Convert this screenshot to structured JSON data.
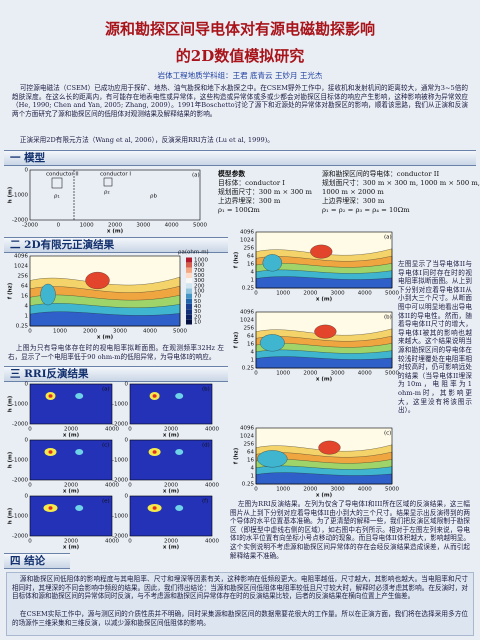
{
  "header": {
    "title_line1": "源和勘探区间导电体对有源电磁勘探影响",
    "title_line2": "的2D数值模拟研究",
    "authors": "岩体工程地质学科组：王君 底青云 王妙月 王光杰"
  },
  "intro": [
    "可控源电磁法（CSEM）已成功应用于探矿、地热、油气勘探和地下水勘探之中。在CSEM野外工作中，接收机和发射机间的距离较大，通常为3~5倍的趋肤深度。在这么长的距离内，有可能存在地表电性或异常体，这些构造或异常体或多或少都会对勘探区目标体的响应产生影响，这种影响被称为异常效应（He, 1990; Chen and Yan, 2005; Zhang, 2009）。1991年Boschetto讨论了源下和近源处的异常体对勘探区的影响，顺着该思路，我们从正演和反演两个方面研究了源和勘探区间的低阻体对观测结果及解释结果的影响。",
    "正演采用2D有限元方法（Wang et al, 2006），反演采用RRI方法 (Lu et al, 1999)。"
  ],
  "sections": [
    "一 模型",
    "二 2D有限元正演结果",
    "三 RRI反演结果",
    "四 结论"
  ],
  "model": {
    "label": "(a)",
    "conductors": [
      "conductor II",
      "conductor I"
    ],
    "rhos": [
      "ρ₁",
      "ρ₂",
      "ρb"
    ],
    "y_label": "h (m)",
    "x_label": "x (m)",
    "yticks": [
      "0",
      "-1000",
      "-2000"
    ],
    "xticks": [
      "-2000",
      "0",
      "1000",
      "2000",
      "3000",
      "4000",
      "5000"
    ]
  },
  "params_left": [
    "模型参数",
    "目标体：conductor I",
    "规划面尺寸：300 m × 300 m",
    "上边界埋深：300 m",
    "ρ₁ = 100Ωm"
  ],
  "params_right": [
    "源和勘探区间的导电体：conductor II",
    "规划面尺寸：300 m × 300 m, 1000 m × 500 m,",
    "1000 m × 2000 m",
    "上边界埋深：300 m",
    "ρ₁ = ρ₂ = ρ₃ = ρ₄ = 10Ωm"
  ],
  "axes": {
    "f_label": "f (hz)",
    "x_label": "x (m)",
    "f_ticks": [
      "4096",
      "1024",
      "256",
      "64",
      "16",
      "4",
      "1",
      "0.25"
    ],
    "x_ticks": [
      "0",
      "1000",
      "2000",
      "3000",
      "4000",
      "5000"
    ],
    "colorbar_title": "ρa(ohm-m)",
    "colorbar_ticks": [
      "1000",
      "800",
      "700",
      "500",
      "300",
      "200",
      "100",
      "70",
      "50",
      "40",
      "30",
      "20",
      "10"
    ]
  },
  "forward": {
    "caption_left": "上图为只有导电体存在时的视电阻率拟断面图。在观测频率32Hz 左右，显示了一个电阻率低于90 ohm-m的低阻异常，为导电体I的响应。",
    "panel_labels": [
      "(a)",
      "(b)",
      "(c)"
    ],
    "text_right": "左图显示了当导电体II与导电体I同时存在时的视电阻率拟断面图。从上到下分别对应着导电体II从小到大三个尺寸。从断面图中可以明显地看出导电体II的导电性。然而，随着导电体II尺寸的增大，导电体I被其的影响也越来越大。这个结果说明当源和勘探区间的导电体在较浅时埋覆处在电阻率相对较高时，仍可影响远处的结果（当导电体II埋深为10m，电阻率为1 ohm-m时，其影响更大，这里没有将该图示出）。"
  },
  "inversion": {
    "panel_labels": [
      "(a)",
      "(b)",
      "(c)",
      "(d)",
      "(e)",
      "(f)"
    ],
    "h_label": "h (m)",
    "x_label": "x (m)",
    "h_ticks": [
      "0",
      "-1000",
      "-2000"
    ],
    "x_ticks": [
      "0",
      "2000",
      "4000"
    ],
    "caption": "左图为RRI反演结果。左列为仅含了导电体I和III所在区域的反演结果，这三幅图片从上到下分别对应着导电体II由小到大的三个尺寸。结果显示出反演得到的两个导体的水平位置基本准确。为了更清楚的解释一些，我们把反演区域限制于勘探区（即模型中虚线右侧的区域），如右图中右列所示。相对于左图左列来说，导电体I的水平位置有向坐标小号点移动的现象。而且导电体II体积越大，影响越明显。这个实例说明不考虑源和勘探区间异常体的存在会经反演结果造成误差，从而引起解释结果不准确。"
  },
  "conclusion": [
    "源和勘探区间低阻体的影响程度与其电阻率、尺寸和埋深等因素有关，这种影响在低频段更大。电阻率越低，尺寸越大，其影响也越大。当电阻率和尺寸相同时，其埋深的不同会影响中频段的结果。因此，我们得出结论：当源和勘探区间低阻体电阻率较低且尺寸较大时，解释时必须考虑其影响。在反演时，对目标体和源和勘探区间的异常体同时反演，与不考虑源和勘探区间异常体存在时的反演结果比较，后者的反演结果在横向位置上产生偏差。",
    "在CSEM实际工作中，源与测区间的介质性质并不明确，同时采集源和勘探区间的数据需要花很大的工作量。所以在正演方面，我们将在选择采用多方位的场源作三维采集和三维反演，以减少源和勘探区间低阻体的影响。"
  ]
}
